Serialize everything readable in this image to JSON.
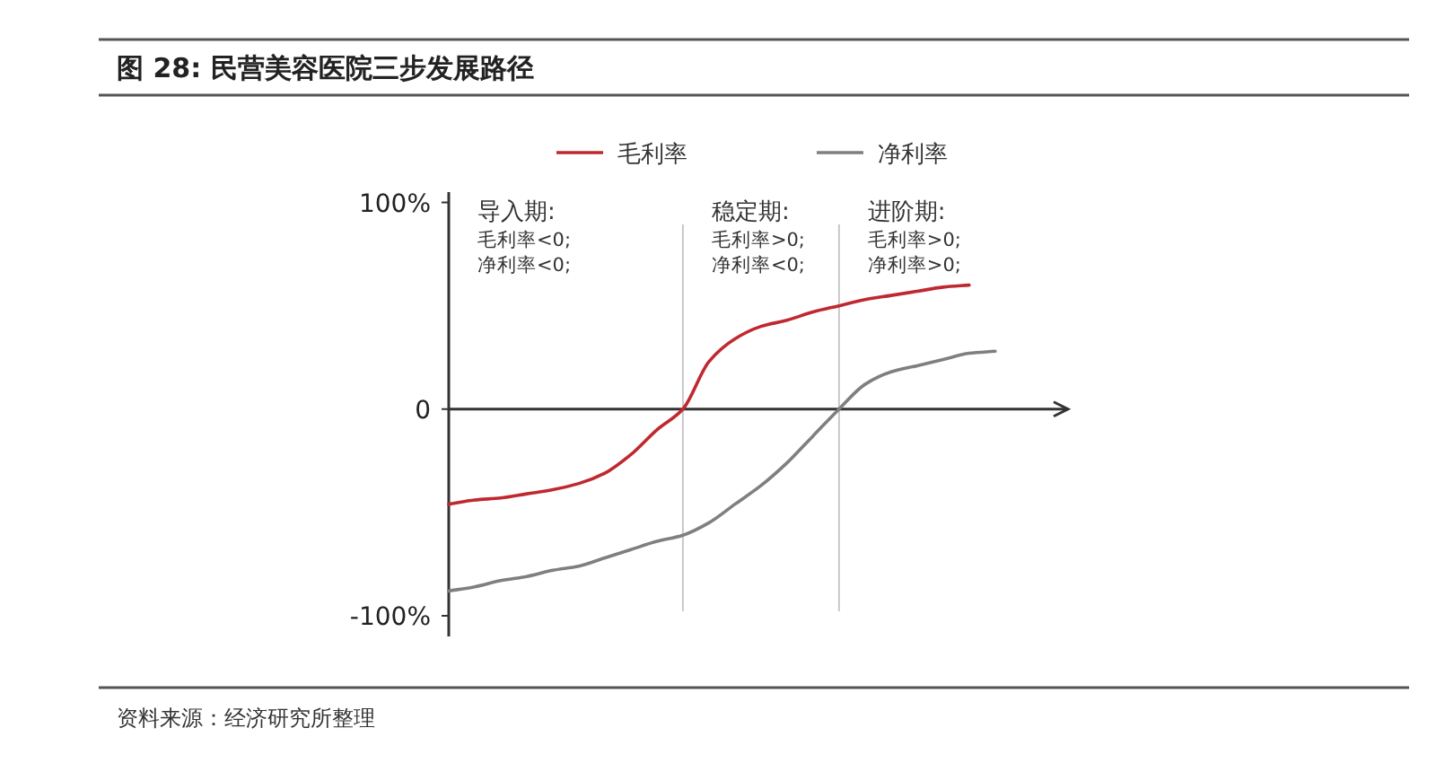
{
  "chart_data": {
    "type": "line",
    "title": "图 28: 民营美容医院三步发展路径",
    "categories": [
      null,
      null,
      null,
      null,
      null,
      null,
      null,
      null,
      null,
      null,
      null,
      null,
      null,
      null,
      null,
      null,
      null,
      null,
      null,
      null,
      null,
      null
    ],
    "ylim": [
      -110,
      105
    ],
    "yticks": [
      {
        "value": 100,
        "label": "100%"
      },
      0,
      {
        "value": -100,
        "label": "-100%"
      }
    ],
    "grid": false,
    "legend": "top",
    "series": [
      {
        "name": "毛利率",
        "color": "#c0282f",
        "values": [
          -46,
          -44,
          -43,
          -41,
          -39,
          -36,
          -31,
          -22,
          -10,
          0,
          23,
          34,
          40,
          43,
          47,
          50,
          53,
          55,
          57,
          59,
          60,
          null
        ]
      },
      {
        "name": "净利率",
        "color": "#7f7f7f",
        "values": [
          -88,
          -86,
          -83,
          -81,
          -78,
          -76,
          -72,
          -68,
          -64,
          -61,
          -55,
          -46,
          -37,
          -26,
          -13,
          0,
          12,
          18,
          21,
          24,
          27,
          28
        ]
      }
    ],
    "annotations": [
      "导入期:\n毛利率<0;\n净利率<0;",
      "稳定期:\n毛利率>0;\n净利率<0;",
      "进阶期:\n毛利率>0;\n净利率>0;",
      "资料来源：经济研究所整理"
    ]
  }
}
